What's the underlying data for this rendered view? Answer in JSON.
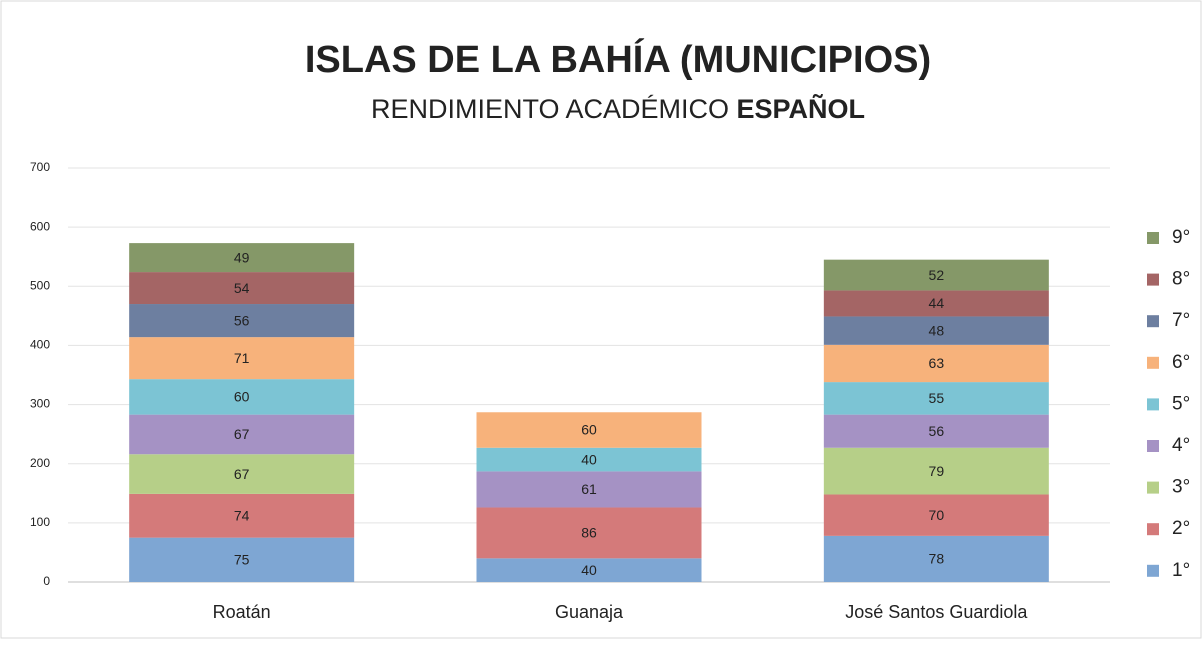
{
  "chart_data": {
    "type": "stacked_bar",
    "title": "ISLAS DE LA BAHÍA (MUNICIPIOS)",
    "subtitle": [
      "RENDIMIENTO ACADÉMICO",
      "ESPAÑOL"
    ],
    "categories": [
      "Roatán",
      "Guanaja",
      "José Santos Guardiola"
    ],
    "series": [
      {
        "name": "1°",
        "color": "#7ea6d3",
        "values": [
          75,
          40,
          78
        ]
      },
      {
        "name": "2°",
        "color": "#d47a7a",
        "values": [
          74,
          86,
          70
        ]
      },
      {
        "name": "3°",
        "color": "#b6cf88",
        "values": [
          67,
          null,
          79
        ]
      },
      {
        "name": "4°",
        "color": "#a592c4",
        "values": [
          67,
          61,
          56
        ]
      },
      {
        "name": "5°",
        "color": "#7cc4d4",
        "values": [
          60,
          40,
          55
        ]
      },
      {
        "name": "6°",
        "color": "#f7b27b",
        "values": [
          71,
          60,
          63
        ]
      },
      {
        "name": "7°",
        "color": "#6d7fa0",
        "values": [
          56,
          null,
          48
        ]
      },
      {
        "name": "8°",
        "color": "#a46565",
        "values": [
          54,
          null,
          44
        ]
      },
      {
        "name": "9°",
        "color": "#859868",
        "values": [
          49,
          null,
          52
        ]
      }
    ],
    "ylim": [
      0,
      700
    ],
    "yticks": [
      0,
      100,
      200,
      300,
      400,
      500,
      600,
      700
    ],
    "grid": true,
    "legend": "right"
  }
}
